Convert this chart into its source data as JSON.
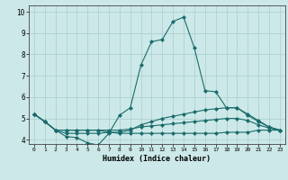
{
  "xlabel": "Humidex (Indice chaleur)",
  "bg_color": "#cce8e8",
  "line_color": "#1a6b6b",
  "xlim": [
    -0.5,
    23.5
  ],
  "ylim": [
    3.8,
    10.3
  ],
  "xticks": [
    0,
    1,
    2,
    3,
    4,
    5,
    6,
    7,
    8,
    9,
    10,
    11,
    12,
    13,
    14,
    15,
    16,
    17,
    18,
    19,
    20,
    21,
    22,
    23
  ],
  "yticks": [
    4,
    5,
    6,
    7,
    8,
    9,
    10
  ],
  "curves": [
    {
      "x": [
        0,
        1,
        2,
        3,
        4,
        5,
        6,
        7,
        8,
        9,
        10,
        11,
        12,
        13,
        14,
        15,
        16,
        17,
        18,
        19,
        20,
        21,
        22,
        23
      ],
      "y": [
        5.2,
        4.85,
        4.45,
        4.15,
        4.1,
        3.85,
        3.75,
        4.3,
        5.15,
        5.5,
        7.5,
        8.6,
        8.7,
        9.55,
        9.75,
        8.3,
        6.3,
        6.25,
        5.5,
        5.5,
        5.15,
        4.85,
        4.6,
        4.45
      ]
    },
    {
      "x": [
        0,
        1,
        2,
        3,
        4,
        5,
        6,
        7,
        8,
        9,
        10,
        11,
        12,
        13,
        14,
        15,
        16,
        17,
        18,
        19,
        20,
        21,
        22,
        23
      ],
      "y": [
        5.2,
        4.85,
        4.45,
        4.3,
        4.3,
        4.3,
        4.3,
        4.35,
        4.35,
        4.45,
        4.7,
        4.85,
        5.0,
        5.1,
        5.2,
        5.3,
        5.4,
        5.45,
        5.5,
        5.5,
        5.2,
        4.9,
        4.6,
        4.45
      ]
    },
    {
      "x": [
        0,
        1,
        2,
        3,
        4,
        5,
        6,
        7,
        8,
        9,
        10,
        11,
        12,
        13,
        14,
        15,
        16,
        17,
        18,
        19,
        20,
        21,
        22,
        23
      ],
      "y": [
        5.2,
        4.85,
        4.45,
        4.45,
        4.45,
        4.45,
        4.45,
        4.45,
        4.45,
        4.5,
        4.6,
        4.65,
        4.7,
        4.75,
        4.8,
        4.85,
        4.9,
        4.95,
        5.0,
        5.0,
        4.9,
        4.7,
        4.55,
        4.45
      ]
    },
    {
      "x": [
        0,
        1,
        2,
        3,
        4,
        5,
        6,
        7,
        8,
        9,
        10,
        11,
        12,
        13,
        14,
        15,
        16,
        17,
        18,
        19,
        20,
        21,
        22,
        23
      ],
      "y": [
        5.2,
        4.85,
        4.45,
        4.45,
        4.45,
        4.45,
        4.45,
        4.35,
        4.3,
        4.3,
        4.3,
        4.3,
        4.3,
        4.3,
        4.3,
        4.3,
        4.3,
        4.3,
        4.35,
        4.35,
        4.35,
        4.45,
        4.45,
        4.45
      ]
    }
  ]
}
